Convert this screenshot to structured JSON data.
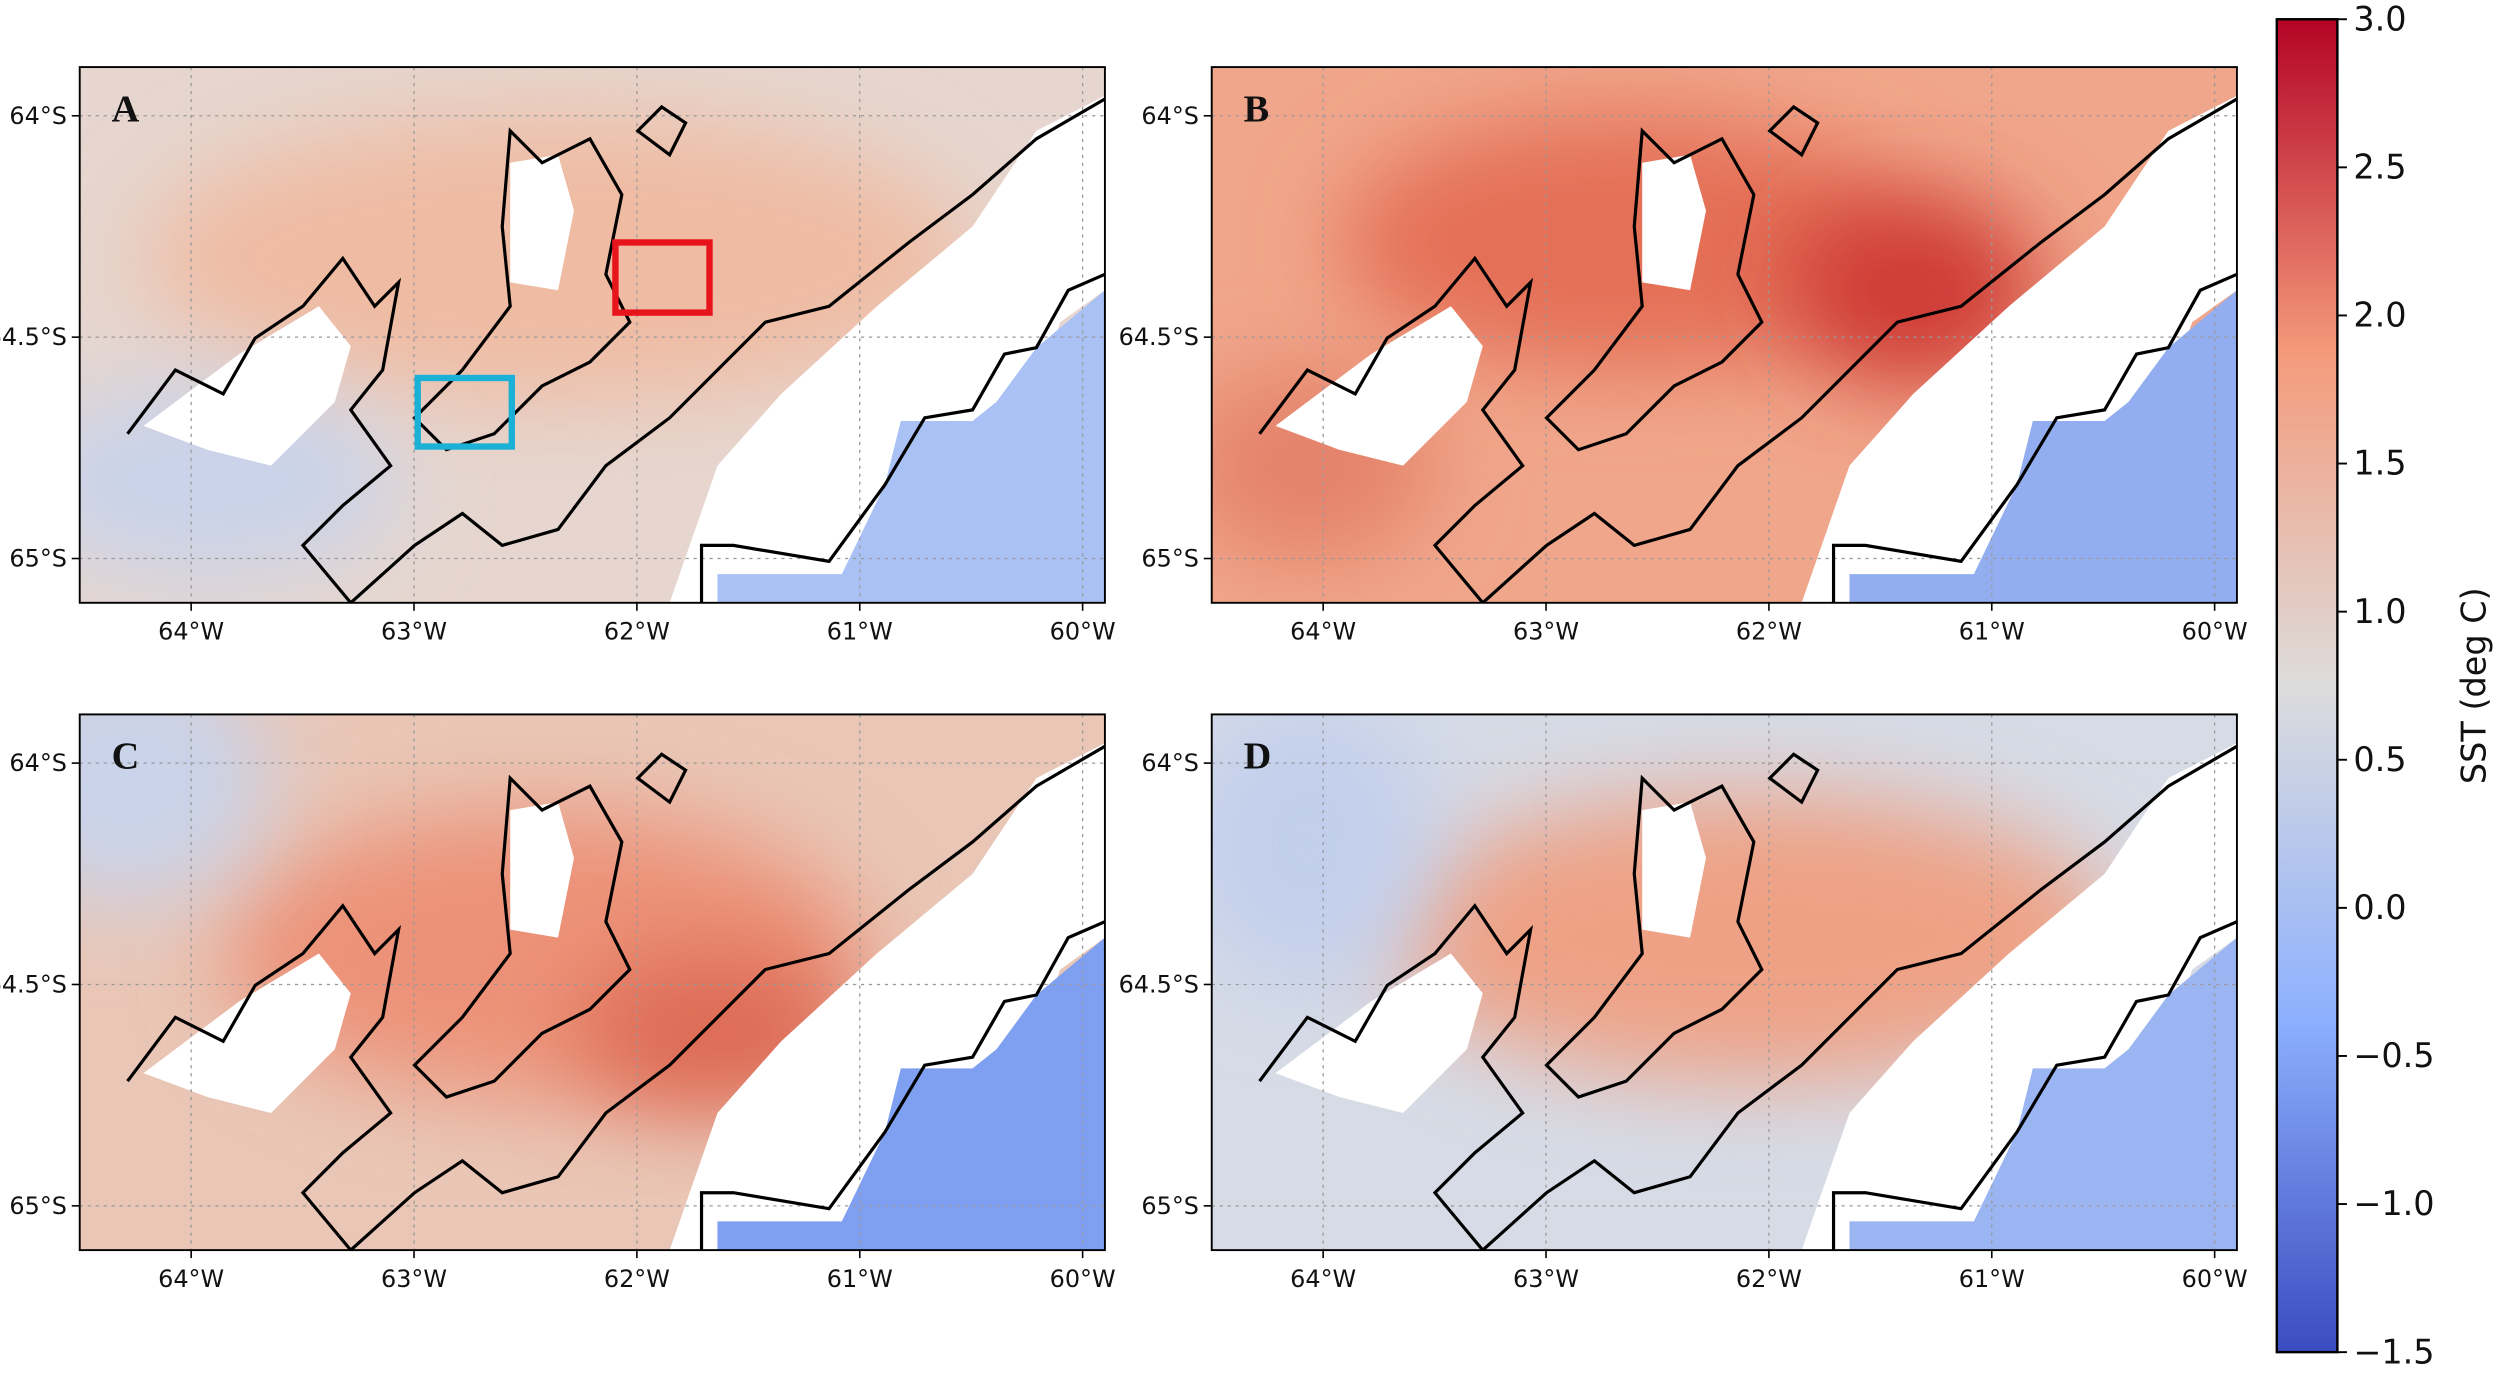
{
  "panels": [
    {
      "label": "A"
    },
    {
      "label": "B"
    },
    {
      "label": "C"
    },
    {
      "label": "D"
    }
  ],
  "lon_range": [
    -64.5,
    -59.9
  ],
  "lat_range": [
    -63.89,
    -65.1
  ],
  "lon_ticks": [
    {
      "value": -64,
      "label": "64°W"
    },
    {
      "value": -63,
      "label": "63°W"
    },
    {
      "value": -62,
      "label": "62°W"
    },
    {
      "value": -61,
      "label": "61°W"
    },
    {
      "value": -60,
      "label": "60°W"
    }
  ],
  "lat_ticks": [
    {
      "value": -64,
      "label": "64°S"
    },
    {
      "value": -64.5,
      "label": "64.5°S"
    },
    {
      "value": -65,
      "label": "65°S"
    }
  ],
  "colorbar": {
    "label": "SST (deg C)",
    "range": [
      -1.5,
      3.0
    ],
    "ticks": [
      {
        "value": 3,
        "label": "3.0"
      },
      2.5,
      {
        "value": 2,
        "label": "2.0"
      },
      1.5,
      {
        "value": 1,
        "label": "1.0"
      },
      0.5,
      {
        "value": 0,
        "label": "0.0"
      },
      {
        "value": -0.5,
        "label": "−0.5"
      },
      {
        "value": -1,
        "label": "−1.0"
      },
      {
        "value": -1.5,
        "label": "−1.5"
      }
    ]
  }
}
